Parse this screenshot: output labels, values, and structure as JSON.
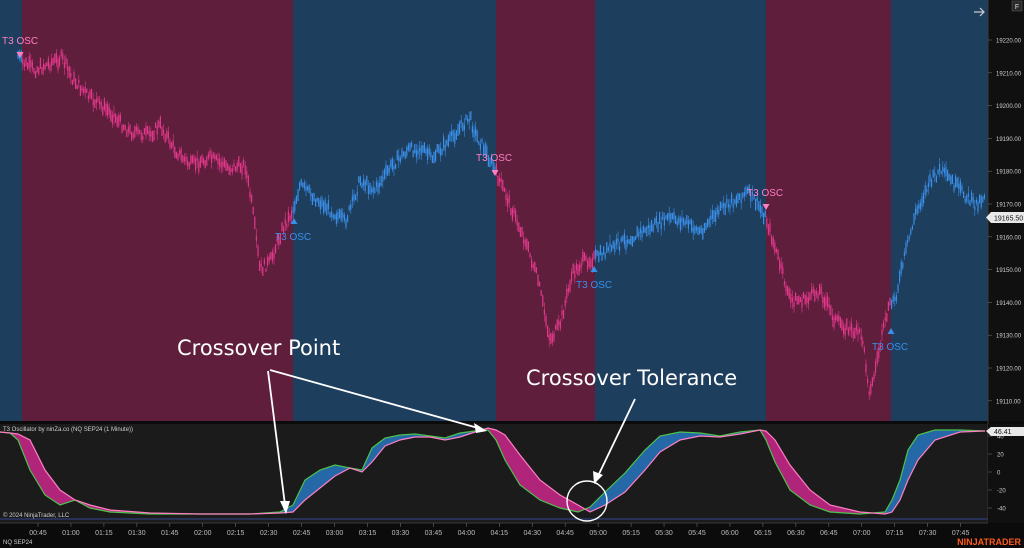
{
  "window": {
    "arrow_icon": "arrow-right-icon",
    "f_badge": "F"
  },
  "colors": {
    "bear_bg": "#5e1e3c",
    "bull_bg": "#1e3e5e",
    "bear": "#e2388a",
    "bull": "#3a8fe8",
    "t3_fill_bear": "#b0257a",
    "t3_fill_bull": "#2468a8",
    "t3_line_a": "#4cc24c",
    "t3_line_b": "#ff7fc4",
    "price_marker": "#e8e8e8",
    "brand": "#ff5a1f"
  },
  "price_axis": {
    "labels": [
      "19220.00",
      "19210.00",
      "19200.00",
      "19190.00",
      "19180.00",
      "19170.00",
      "19160.00",
      "19150.00",
      "19140.00",
      "19130.00",
      "19120.00",
      "19110.00"
    ],
    "current": "19165.50"
  },
  "osc_axis": {
    "labels": [
      "40",
      "20",
      "0",
      "-20",
      "-40"
    ],
    "current": "46.41"
  },
  "time_axis": {
    "labels": [
      "00:45",
      "01:00",
      "01:15",
      "01:30",
      "01:45",
      "02:00",
      "02:15",
      "02:30",
      "02:45",
      "03:00",
      "03:15",
      "03:30",
      "03:45",
      "04:00",
      "04:15",
      "04:30",
      "04:45",
      "05:00",
      "05:15",
      "05:30",
      "05:45",
      "06:00",
      "06:15",
      "06:30",
      "06:45",
      "07:00",
      "07:15",
      "07:30",
      "07:45"
    ]
  },
  "signals": [
    {
      "label": "T3 OSC",
      "dir": "down"
    },
    {
      "label": "T3 OSC",
      "dir": "up"
    },
    {
      "label": "T3 OSC",
      "dir": "down"
    },
    {
      "label": "T3 OSC",
      "dir": "up"
    },
    {
      "label": "T3 OSC",
      "dir": "down"
    },
    {
      "label": "T3 OSC",
      "dir": "up"
    }
  ],
  "panel": {
    "title": "T3 Oscillator by ninZa.co (NQ SEP24 (1 Minute))",
    "copyright": "© 2024 NinjaTrader, LLC",
    "instrument": "NQ SEP24"
  },
  "annotations": {
    "crossover_point": "Crossover Point",
    "crossover_tolerance": "Crossover Tolerance"
  },
  "brand": "NINJATRADER"
}
